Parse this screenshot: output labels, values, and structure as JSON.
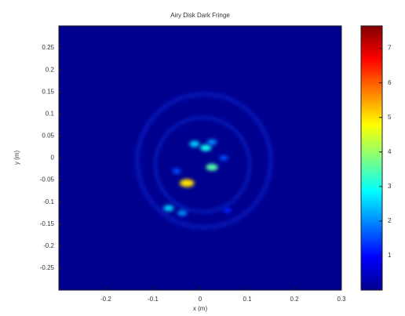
{
  "chart_data": {
    "type": "heatmap",
    "title": "Airy Disk Dark Fringe",
    "x_label": "x (m)",
    "y_label": "y (m)",
    "xlim": [
      -0.3,
      0.3
    ],
    "xticks": [
      -0.2,
      -0.1,
      0,
      0.1,
      0.2,
      0.3
    ],
    "ylim": [
      -0.3,
      0.3
    ],
    "yticks": [
      0.25,
      0.2,
      0.15,
      0.1,
      0.05,
      0,
      -0.05,
      -0.1,
      -0.15,
      -0.2,
      -0.25
    ],
    "clim": [
      0,
      7.65
    ],
    "cticks": [
      1,
      2,
      3,
      4,
      5,
      6,
      7
    ],
    "colormap": "jet",
    "spots": {
      "x": [
        -0.028,
        -0.067,
        -0.038,
        0.025,
        0.012,
        -0.012,
        0.025,
        0.05,
        -0.05,
        0.058
      ],
      "y": [
        -0.057,
        -0.114,
        -0.125,
        -0.021,
        0.023,
        0.032,
        0.036,
        0,
        -0.03,
        -0.119
      ],
      "values": [
        5,
        2.5,
        2,
        3.5,
        3,
        2.5,
        2,
        1.5,
        1.5,
        1.2
      ]
    }
  }
}
